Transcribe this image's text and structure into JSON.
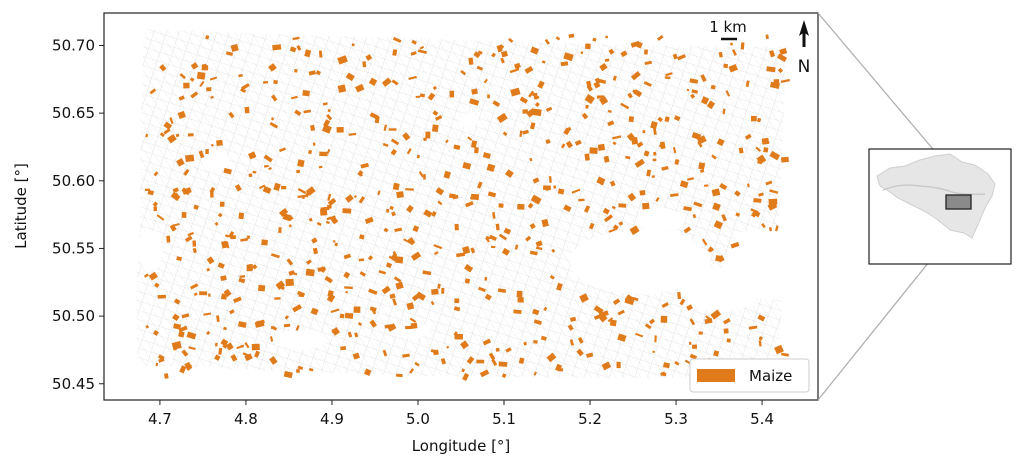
{
  "map": {
    "xlabel": "Longitude [°]",
    "ylabel": "Latitude [°]",
    "x_ticks": [
      "4.7",
      "4.8",
      "4.9",
      "5.0",
      "5.1",
      "5.2",
      "5.3",
      "5.4"
    ],
    "y_ticks": [
      "50.70",
      "50.65",
      "50.60",
      "50.55",
      "50.50",
      "50.45"
    ],
    "x_range": [
      4.635,
      5.465
    ],
    "y_range": [
      50.438,
      50.724
    ],
    "scale_bar_label": "1 km",
    "north_label": "N",
    "legend_label": "Maize",
    "colors": {
      "maize": "#e07b1c",
      "parcel_outline": "#cfcfcf",
      "frame": "#222222",
      "overview_country": "#e6e6e6",
      "overview_box": "#8a8a8a",
      "connector": "#b0b0b0"
    },
    "legend_placement": "bottom-right",
    "inset": "location overview map (Belgium) with study-area box",
    "icons": [
      "north-arrow-icon",
      "scale-bar-icon"
    ]
  }
}
